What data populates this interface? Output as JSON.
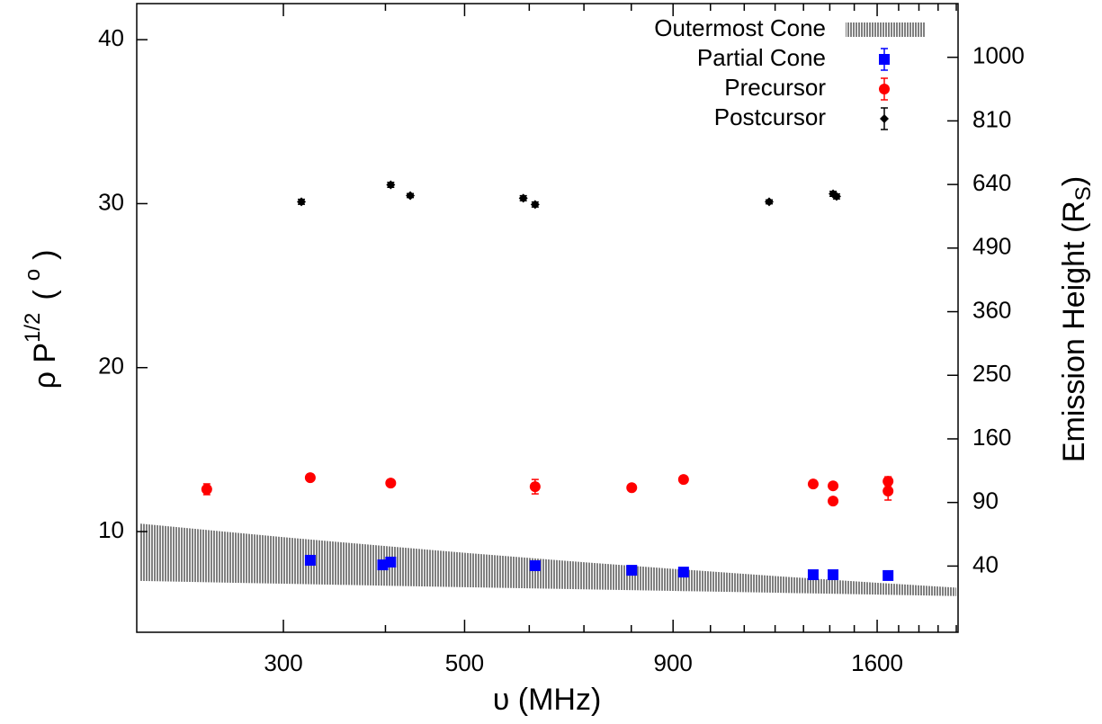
{
  "chart_data": {
    "type": "scatter",
    "xlabel": "υ  (MHz)",
    "ylabel": [
      "ρ P",
      "1/2",
      "(",
      "o",
      ")"
    ],
    "y2label": [
      "Emission Height  (R",
      "S",
      ")"
    ],
    "xscale": "log",
    "xlim": [
      198.4,
      2010
    ],
    "xticks": [
      300,
      500,
      900,
      1600
    ],
    "xminorticks": [
      400,
      600,
      700,
      800,
      1000,
      1100,
      1200,
      1300,
      1400,
      1500,
      1700,
      1800,
      1900,
      2000
    ],
    "ylim": [
      3.86,
      42.2
    ],
    "yticks": [
      10,
      20,
      30,
      40
    ],
    "y2scale": "sqrt",
    "y2lim": [
      9.2,
      1176
    ],
    "y2ticks": [
      40,
      90,
      160,
      250,
      360,
      490,
      640,
      810,
      1000
    ],
    "legend": "upper right",
    "series": [
      {
        "name": "Outermost Cone",
        "color": "#808080",
        "kind": "band",
        "x": [
          200,
          300,
          400,
          500,
          700,
          900,
          1200,
          1600,
          2000
        ],
        "high": [
          10.49,
          9.66,
          9.12,
          8.71,
          8.13,
          7.73,
          7.29,
          6.88,
          6.58
        ],
        "low": [
          6.99,
          6.82,
          6.7,
          6.61,
          6.48,
          6.38,
          6.27,
          6.16,
          6.07
        ]
      },
      {
        "name": "Partial Cone",
        "color": "#0000ff",
        "kind": "square",
        "x": [
          323.6,
          397,
          406,
          610,
          801,
          927,
          1336,
          1413,
          1650
        ],
        "values": [
          8.25,
          7.97,
          8.14,
          7.92,
          7.64,
          7.53,
          7.37,
          7.37,
          7.32
        ]
      },
      {
        "name": "Precursor",
        "color": "#ff0000",
        "kind": "circle",
        "x": [
          241.7,
          323.6,
          406,
          610,
          801,
          927,
          1336,
          1413,
          1413,
          1650,
          1650
        ],
        "values": [
          12.58,
          13.29,
          12.96,
          12.74,
          12.68,
          13.18,
          12.9,
          12.79,
          11.86,
          13.07,
          12.47
        ],
        "errors": [
          0.33,
          0.1,
          0.1,
          0.44,
          0.1,
          0.1,
          0.1,
          0.1,
          0.1,
          0.27,
          0.55
        ]
      },
      {
        "name": "Postcursor",
        "color": "#000000",
        "kind": "diamond",
        "x": [
          315.6,
          406,
          429,
          590,
          610,
          1180,
          1413,
          1427
        ],
        "values": [
          30.11,
          31.15,
          30.49,
          30.33,
          29.95,
          30.11,
          30.6,
          30.44
        ],
        "errors": [
          0.15,
          0.15,
          0.12,
          0.15,
          0.15,
          0.12,
          0.15,
          0.15
        ]
      }
    ]
  }
}
